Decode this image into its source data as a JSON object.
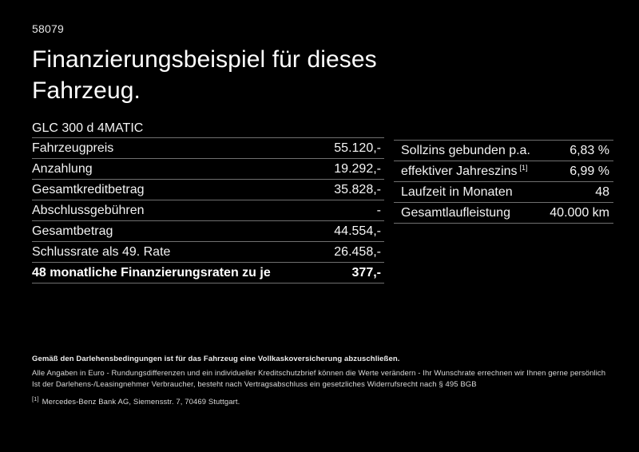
{
  "header": {
    "ref_number": "58079",
    "title": "Finanzierungsbeispiel für dieses Fahrzeug."
  },
  "model": "GLC 300 d 4MATIC",
  "finance_table": {
    "rows": [
      {
        "label": "Fahrzeugpreis",
        "value": "55.120,-"
      },
      {
        "label": "Anzahlung",
        "value": "19.292,-"
      },
      {
        "label": "Gesamtkreditbetrag",
        "value": "35.828,-"
      },
      {
        "label": "Abschlussgebühren",
        "value": "-"
      },
      {
        "label": "Gesamtbetrag",
        "value": "44.554,-"
      },
      {
        "label": "Schlussrate als 49. Rate",
        "value": "26.458,-"
      },
      {
        "label": "48 monatliche Finanzierungsraten zu je",
        "value": "377,-"
      }
    ]
  },
  "conditions_table": {
    "rows": [
      {
        "label": "Sollzins gebunden p.a.",
        "value": "6,83 %"
      },
      {
        "label": "effektiver Jahreszins",
        "footnote": "[1]",
        "value": "6,99 %"
      },
      {
        "label": "Laufzeit in Monaten",
        "value": "48"
      },
      {
        "label": "Gesamtlaufleistung",
        "value": "40.000 km"
      }
    ]
  },
  "footer": {
    "insurance_note": "Gemäß den Darlehensbedingungen ist für das Fahrzeug eine Vollkaskoversicherung abzuschließen.",
    "note_line_1": "Alle Angaben in Euro - Rundungsdifferenzen und ein individueller Kreditschutzbrief können die Werte verändern - Ihr Wunschrate errechnen wir Ihnen gerne persönlich",
    "note_line_2": "Ist der Darlehens-/Leasingnehmer Verbraucher, besteht nach Vertragsabschluss ein gesetzliches Widerrufsrecht nach § 495 BGB",
    "footnote_marker": "[1]",
    "footnote_text": "Mercedes-Benz Bank AG, Siemensstr. 7, 70469 Stuttgart."
  },
  "colors": {
    "background": "#000000",
    "text": "#f2f2f2",
    "divider": "#707070"
  }
}
